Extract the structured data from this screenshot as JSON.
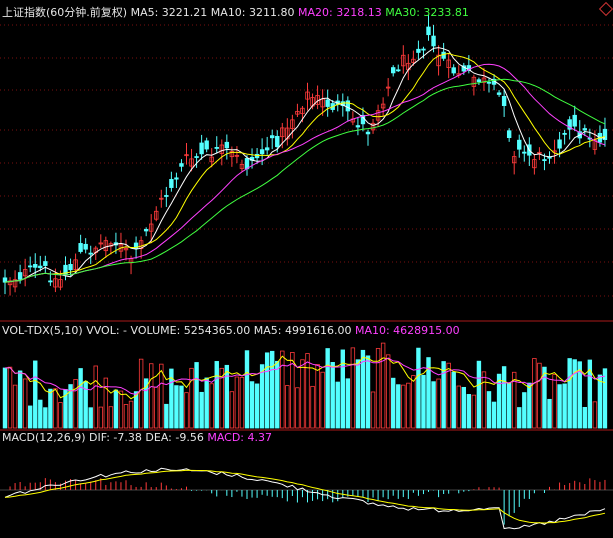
{
  "price": {
    "name": "上证指数(60分钟.前复权)",
    "ma5": "MA5: 3221.21",
    "ma10": "MA10: 3211.80",
    "ma20": "MA20: 3218.13",
    "ma30": "MA30: 3233.81"
  },
  "volume": {
    "name": "VOL-TDX(5,10)",
    "vvol": "VVOL: -",
    "vol": "VOLUME: 5254365.00",
    "ma5": "MA5: 4991616.00",
    "ma10": "MA10: 4628915.00"
  },
  "macd": {
    "name": "MACD(12,26,9)",
    "dif": "DIF: -7.38",
    "dea": "DEA: -9.56",
    "macd": "MACD: 4.37"
  },
  "colors": {
    "up": "#ff3b3b",
    "down": "#54ffff",
    "ma5": "#ffffff",
    "ma10": "#ffff00",
    "ma20": "#ff40ff",
    "ma30": "#40ff40"
  }
}
